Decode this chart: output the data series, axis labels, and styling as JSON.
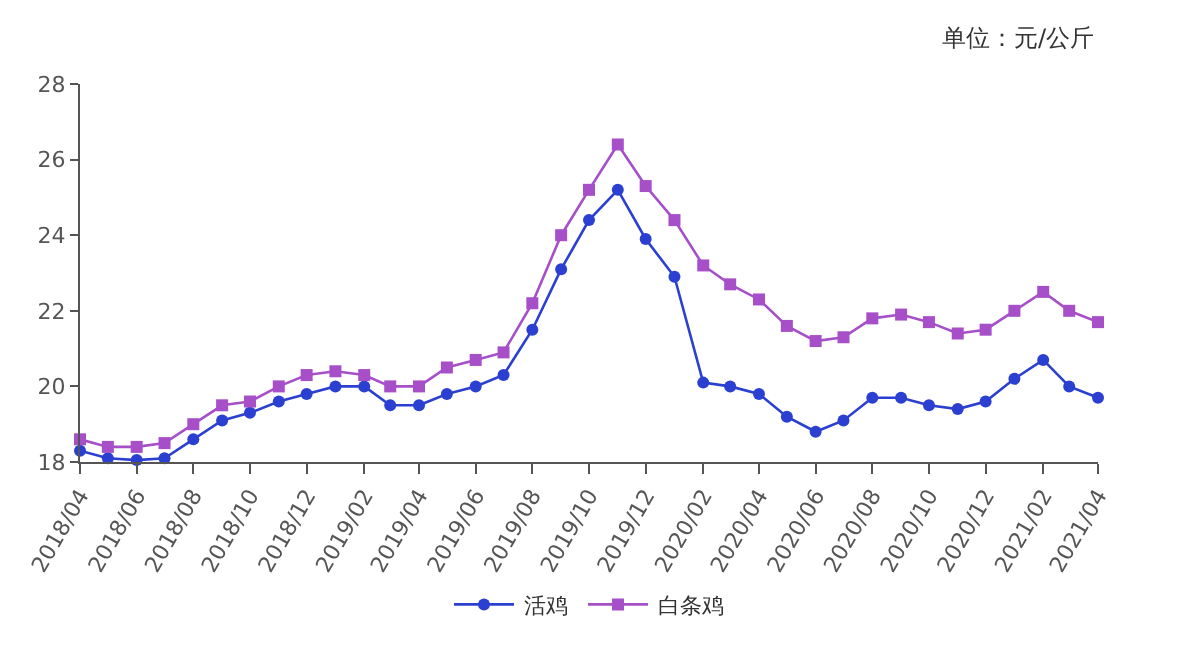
{
  "chart_data": {
    "type": "line",
    "annotations": [
      "单位：元/公斤"
    ],
    "x": [
      "2018-04",
      "2018-05",
      "2018-06",
      "2018-07",
      "2018-08",
      "2018-09",
      "2018-10",
      "2018-11",
      "2018-12",
      "2019-01",
      "2019-02",
      "2019-03",
      "2019-04",
      "2019-05",
      "2019-06",
      "2019-07",
      "2019-08",
      "2019-09",
      "2019-10",
      "2019-11",
      "2019-12",
      "2020-01",
      "2020-02",
      "2020-03",
      "2020-04",
      "2020-05",
      "2020-06",
      "2020-07",
      "2020-08",
      "2020-09",
      "2020-10",
      "2020-11",
      "2020-12",
      "2021-01",
      "2021-02",
      "2021-03",
      "2021-04"
    ],
    "series": [
      {
        "name": "活鸡",
        "color": "#2b3fd0",
        "marker": "circle",
        "values": [
          18.3,
          18.1,
          18.05,
          18.1,
          18.6,
          19.1,
          19.3,
          19.6,
          19.8,
          20.0,
          20.0,
          19.5,
          19.5,
          19.8,
          20.0,
          20.3,
          21.5,
          23.1,
          24.4,
          25.2,
          23.9,
          22.9,
          20.1,
          20.0,
          19.8,
          19.2,
          18.8,
          19.1,
          19.7,
          19.7,
          19.5,
          19.4,
          19.6,
          20.2,
          20.7,
          20.0,
          19.7
        ]
      },
      {
        "name": "白条鸡",
        "color": "#a64fc9",
        "marker": "square",
        "values": [
          18.6,
          18.4,
          18.4,
          18.5,
          19.0,
          19.5,
          19.6,
          20.0,
          20.3,
          20.4,
          20.3,
          20.0,
          20.0,
          20.5,
          20.7,
          20.9,
          22.2,
          24.0,
          25.2,
          26.4,
          25.3,
          24.4,
          23.2,
          22.7,
          22.3,
          21.6,
          21.2,
          21.3,
          21.8,
          21.9,
          21.7,
          21.4,
          21.5,
          22.0,
          22.5,
          22.0,
          21.7
        ]
      }
    ],
    "xlim": [
      "2018-04",
      "2021-04"
    ],
    "xticks": [
      {
        "value": "2018-04",
        "label": "2018/04"
      },
      {
        "value": "2018-06",
        "label": "2018/06"
      },
      {
        "value": "2018-08",
        "label": "2018/08"
      },
      {
        "value": "2018-10",
        "label": "2018/10"
      },
      {
        "value": "2018-12",
        "label": "2018/12"
      },
      {
        "value": "2019-02",
        "label": "2019/02"
      },
      {
        "value": "2019-04",
        "label": "2019/04"
      },
      {
        "value": "2019-06",
        "label": "2019/06"
      },
      {
        "value": "2019-08",
        "label": "2019/08"
      },
      {
        "value": "2019-10",
        "label": "2019/10"
      },
      {
        "value": "2019-12",
        "label": "2019/12"
      },
      {
        "value": "2020-02",
        "label": "2020/02"
      },
      {
        "value": "2020-04",
        "label": "2020/04"
      },
      {
        "value": "2020-06",
        "label": "2020/06"
      },
      {
        "value": "2020-08",
        "label": "2020/08"
      },
      {
        "value": "2020-10",
        "label": "2020/10"
      },
      {
        "value": "2020-12",
        "label": "2020/12"
      },
      {
        "value": "2021-02",
        "label": "2021/02"
      },
      {
        "value": "2021-04",
        "label": "2021/04"
      }
    ],
    "ylim": [
      18,
      28
    ],
    "yticks": [
      18,
      20,
      22,
      24,
      26,
      28
    ],
    "grid": false,
    "legend": "bottom",
    "line_style": "solid"
  }
}
